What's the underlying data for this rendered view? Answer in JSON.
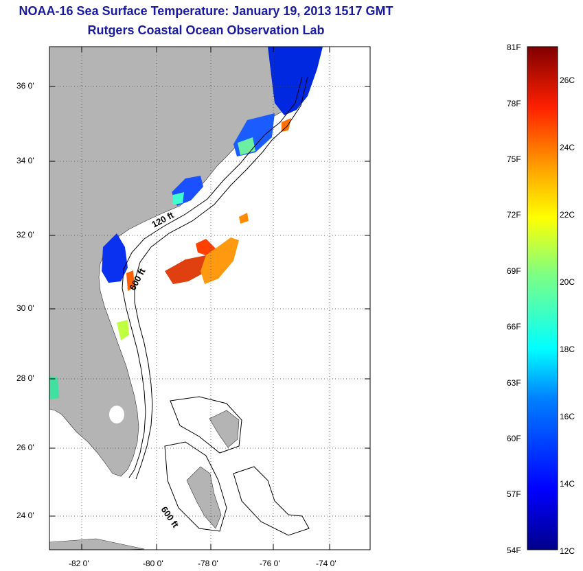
{
  "header": {
    "title": "NOAA-16 Sea Surface Temperature:  January 19, 2013 1517 GMT",
    "subtitle": "Rutgers Coastal Ocean Observation Lab"
  },
  "map": {
    "lat_labels": [
      "36 0'",
      "34 0'",
      "32 0'",
      "30 0'",
      "28 0'",
      "26 0'",
      "24 0'"
    ],
    "lon_labels": [
      "-82 0'",
      "-80 0'",
      "-78 0'",
      "-76 0'",
      "-74 0'"
    ],
    "contours": {
      "c120": "120 ft",
      "c600a": "600 ft",
      "c600b": "600 ft"
    },
    "colors": {
      "land": "#b4b4b4",
      "ocean": "#ffffff"
    }
  },
  "colorbar": {
    "fahrenheit": [
      "81F",
      "78F",
      "75F",
      "72F",
      "69F",
      "66F",
      "63F",
      "60F",
      "57F",
      "54F"
    ],
    "celsius": [
      "26C",
      "24C",
      "22C",
      "20C",
      "18C",
      "16C",
      "14C",
      "12C"
    ]
  }
}
